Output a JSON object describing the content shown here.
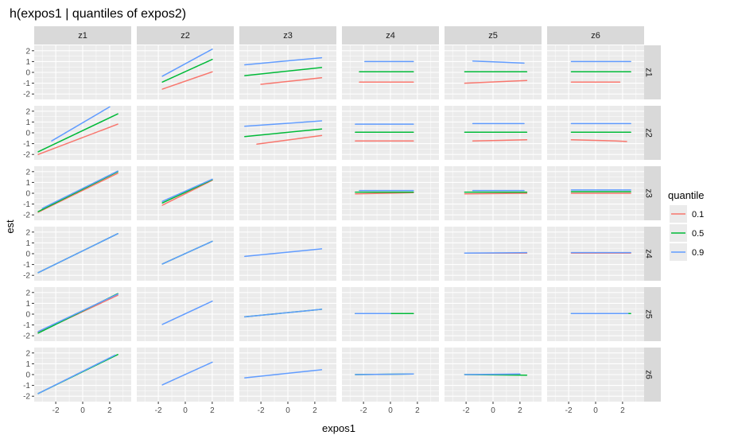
{
  "chart_data": {
    "type": "line",
    "title": "h(expos1 | quantiles of expos2)",
    "xlabel": "expos1",
    "ylabel": "est",
    "col_facets": [
      "z1",
      "z2",
      "z3",
      "z4",
      "z5",
      "z6"
    ],
    "row_facets": [
      "z1",
      "z2",
      "z3",
      "z4",
      "z5",
      "z6"
    ],
    "xlim": [
      -3.6,
      3.6
    ],
    "ylim": [
      -2.5,
      2.5
    ],
    "x_ticks": [
      -2,
      0,
      2
    ],
    "y_ticks": [
      -2,
      -1,
      0,
      1,
      2
    ],
    "legend": {
      "title": "quantile",
      "placement": "right",
      "entries": [
        {
          "label": "0.1",
          "color": "#F8766D"
        },
        {
          "label": "0.5",
          "color": "#00BA38"
        },
        {
          "label": "0.9",
          "color": "#619CFF"
        }
      ]
    },
    "panels": [
      {
        "row": "z1",
        "col": "z1",
        "series": []
      },
      {
        "row": "z1",
        "col": "z2",
        "series": [
          {
            "quantile": "0.1",
            "x": [
              -1.7,
              2.0
            ],
            "y": [
              -1.55,
              0.05
            ]
          },
          {
            "quantile": "0.5",
            "x": [
              -1.7,
              2.0
            ],
            "y": [
              -0.9,
              1.2
            ]
          },
          {
            "quantile": "0.9",
            "x": [
              -1.7,
              2.0
            ],
            "y": [
              -0.35,
              2.15
            ]
          }
        ]
      },
      {
        "row": "z1",
        "col": "z3",
        "series": [
          {
            "quantile": "0.1",
            "x": [
              -2.0,
              2.5
            ],
            "y": [
              -1.1,
              -0.5
            ]
          },
          {
            "quantile": "0.5",
            "x": [
              -3.2,
              2.5
            ],
            "y": [
              -0.3,
              0.45
            ]
          },
          {
            "quantile": "0.9",
            "x": [
              -3.2,
              2.5
            ],
            "y": [
              0.7,
              1.35
            ]
          }
        ]
      },
      {
        "row": "z1",
        "col": "z4",
        "series": [
          {
            "quantile": "0.1",
            "x": [
              -2.3,
              1.7
            ],
            "y": [
              -0.9,
              -0.9
            ]
          },
          {
            "quantile": "0.5",
            "x": [
              -2.3,
              1.7
            ],
            "y": [
              0.05,
              0.05
            ]
          },
          {
            "quantile": "0.9",
            "x": [
              -1.9,
              1.7
            ],
            "y": [
              1.0,
              1.0
            ]
          }
        ]
      },
      {
        "row": "z1",
        "col": "z5",
        "series": [
          {
            "quantile": "0.1",
            "x": [
              -2.1,
              2.5
            ],
            "y": [
              -1.0,
              -0.75
            ]
          },
          {
            "quantile": "0.5",
            "x": [
              -2.1,
              2.5
            ],
            "y": [
              0.05,
              0.05
            ]
          },
          {
            "quantile": "0.9",
            "x": [
              -1.5,
              2.3
            ],
            "y": [
              1.05,
              0.85
            ]
          }
        ]
      },
      {
        "row": "z1",
        "col": "z6",
        "series": [
          {
            "quantile": "0.1",
            "x": [
              -1.8,
              1.8
            ],
            "y": [
              -0.9,
              -0.9
            ]
          },
          {
            "quantile": "0.5",
            "x": [
              -1.8,
              2.6
            ],
            "y": [
              0.05,
              0.05
            ]
          },
          {
            "quantile": "0.9",
            "x": [
              -1.8,
              2.6
            ],
            "y": [
              1.0,
              1.0
            ]
          }
        ]
      },
      {
        "row": "z2",
        "col": "z1",
        "series": [
          {
            "quantile": "0.1",
            "x": [
              -3.3,
              2.6
            ],
            "y": [
              -2.0,
              0.8
            ]
          },
          {
            "quantile": "0.5",
            "x": [
              -3.3,
              2.6
            ],
            "y": [
              -1.75,
              1.75
            ]
          },
          {
            "quantile": "0.9",
            "x": [
              -2.3,
              2.0
            ],
            "y": [
              -0.75,
              2.4
            ]
          }
        ]
      },
      {
        "row": "z2",
        "col": "z2",
        "series": []
      },
      {
        "row": "z2",
        "col": "z3",
        "series": [
          {
            "quantile": "0.1",
            "x": [
              -2.3,
              2.5
            ],
            "y": [
              -1.05,
              -0.25
            ]
          },
          {
            "quantile": "0.5",
            "x": [
              -3.2,
              2.5
            ],
            "y": [
              -0.35,
              0.35
            ]
          },
          {
            "quantile": "0.9",
            "x": [
              -3.2,
              2.5
            ],
            "y": [
              0.6,
              1.1
            ]
          }
        ]
      },
      {
        "row": "z2",
        "col": "z4",
        "series": [
          {
            "quantile": "0.1",
            "x": [
              -2.6,
              1.7
            ],
            "y": [
              -0.75,
              -0.75
            ]
          },
          {
            "quantile": "0.5",
            "x": [
              -2.6,
              1.7
            ],
            "y": [
              0.05,
              0.05
            ]
          },
          {
            "quantile": "0.9",
            "x": [
              -2.6,
              1.7
            ],
            "y": [
              0.8,
              0.8
            ]
          }
        ]
      },
      {
        "row": "z2",
        "col": "z5",
        "series": [
          {
            "quantile": "0.1",
            "x": [
              -1.5,
              2.5
            ],
            "y": [
              -0.75,
              -0.65
            ]
          },
          {
            "quantile": "0.5",
            "x": [
              -2.1,
              2.5
            ],
            "y": [
              0.05,
              0.05
            ]
          },
          {
            "quantile": "0.9",
            "x": [
              -1.5,
              2.3
            ],
            "y": [
              0.85,
              0.85
            ]
          }
        ]
      },
      {
        "row": "z2",
        "col": "z6",
        "series": [
          {
            "quantile": "0.1",
            "x": [
              -1.8,
              1.5,
              2.3
            ],
            "y": [
              -0.65,
              -0.75,
              -0.8
            ]
          },
          {
            "quantile": "0.5",
            "x": [
              -1.8,
              2.6
            ],
            "y": [
              0.05,
              0.05
            ]
          },
          {
            "quantile": "0.9",
            "x": [
              -1.8,
              2.6
            ],
            "y": [
              0.85,
              0.85
            ]
          }
        ]
      },
      {
        "row": "z3",
        "col": "z1",
        "series": [
          {
            "quantile": "0.1",
            "x": [
              -3.3,
              2.6
            ],
            "y": [
              -1.75,
              1.85
            ]
          },
          {
            "quantile": "0.5",
            "x": [
              -3.3,
              2.6
            ],
            "y": [
              -1.7,
              2.0
            ]
          },
          {
            "quantile": "0.9",
            "x": [
              -3.0,
              2.6
            ],
            "y": [
              -1.4,
              2.05
            ]
          }
        ]
      },
      {
        "row": "z3",
        "col": "z2",
        "series": [
          {
            "quantile": "0.1",
            "x": [
              -1.7,
              2.0
            ],
            "y": [
              -1.1,
              1.2
            ]
          },
          {
            "quantile": "0.5",
            "x": [
              -1.7,
              2.0
            ],
            "y": [
              -0.9,
              1.25
            ]
          },
          {
            "quantile": "0.9",
            "x": [
              -1.7,
              2.0
            ],
            "y": [
              -0.75,
              1.3
            ]
          }
        ]
      },
      {
        "row": "z3",
        "col": "z3",
        "series": []
      },
      {
        "row": "z3",
        "col": "z4",
        "series": [
          {
            "quantile": "0.1",
            "x": [
              -2.6,
              1.7
            ],
            "y": [
              -0.05,
              0.05
            ]
          },
          {
            "quantile": "0.5",
            "x": [
              -2.6,
              1.7
            ],
            "y": [
              0.1,
              0.1
            ]
          },
          {
            "quantile": "0.9",
            "x": [
              -2.3,
              1.7
            ],
            "y": [
              0.25,
              0.25
            ]
          }
        ]
      },
      {
        "row": "z3",
        "col": "z5",
        "series": [
          {
            "quantile": "0.1",
            "x": [
              -2.1,
              2.5
            ],
            "y": [
              -0.05,
              0.0
            ]
          },
          {
            "quantile": "0.5",
            "x": [
              -2.1,
              2.5
            ],
            "y": [
              0.1,
              0.1
            ]
          },
          {
            "quantile": "0.9",
            "x": [
              -1.5,
              2.3
            ],
            "y": [
              0.25,
              0.25
            ]
          }
        ]
      },
      {
        "row": "z3",
        "col": "z6",
        "series": [
          {
            "quantile": "0.1",
            "x": [
              -1.8,
              2.6
            ],
            "y": [
              0.0,
              0.0
            ]
          },
          {
            "quantile": "0.5",
            "x": [
              -1.8,
              2.6
            ],
            "y": [
              0.15,
              0.15
            ]
          },
          {
            "quantile": "0.9",
            "x": [
              -1.8,
              2.6
            ],
            "y": [
              0.3,
              0.3
            ]
          }
        ]
      },
      {
        "row": "z4",
        "col": "z1",
        "series": [
          {
            "quantile": "0.5",
            "x": [
              -3.3,
              2.6
            ],
            "y": [
              -1.75,
              1.85
            ]
          },
          {
            "quantile": "0.9",
            "x": [
              -3.3,
              2.6
            ],
            "y": [
              -1.75,
              1.85
            ]
          }
        ]
      },
      {
        "row": "z4",
        "col": "z2",
        "series": [
          {
            "quantile": "0.5",
            "x": [
              -1.7,
              2.0
            ],
            "y": [
              -0.95,
              1.15
            ]
          },
          {
            "quantile": "0.9",
            "x": [
              -1.7,
              2.0
            ],
            "y": [
              -0.95,
              1.15
            ]
          }
        ]
      },
      {
        "row": "z4",
        "col": "z3",
        "series": [
          {
            "quantile": "0.9",
            "x": [
              -3.2,
              2.5
            ],
            "y": [
              -0.25,
              0.45
            ]
          }
        ]
      },
      {
        "row": "z4",
        "col": "z4",
        "series": []
      },
      {
        "row": "z4",
        "col": "z5",
        "series": [
          {
            "quantile": "0.1",
            "x": [
              -2.1,
              2.5
            ],
            "y": [
              0.05,
              0.05
            ]
          },
          {
            "quantile": "0.9",
            "x": [
              -2.1,
              2.5
            ],
            "y": [
              0.05,
              0.1
            ]
          }
        ]
      },
      {
        "row": "z4",
        "col": "z6",
        "series": [
          {
            "quantile": "0.1",
            "x": [
              -1.8,
              2.6
            ],
            "y": [
              0.05,
              0.05
            ]
          },
          {
            "quantile": "0.9",
            "x": [
              -1.8,
              2.6
            ],
            "y": [
              0.1,
              0.1
            ]
          }
        ]
      },
      {
        "row": "z5",
        "col": "z1",
        "series": [
          {
            "quantile": "0.1",
            "x": [
              -3.3,
              2.6
            ],
            "y": [
              -1.7,
              1.75
            ]
          },
          {
            "quantile": "0.5",
            "x": [
              -3.3,
              2.6
            ],
            "y": [
              -1.75,
              1.9
            ]
          },
          {
            "quantile": "0.9",
            "x": [
              -3.3,
              2.6
            ],
            "y": [
              -1.6,
              1.85
            ]
          }
        ]
      },
      {
        "row": "z5",
        "col": "z2",
        "series": [
          {
            "quantile": "0.9",
            "x": [
              -1.7,
              2.0
            ],
            "y": [
              -0.95,
              1.2
            ]
          }
        ]
      },
      {
        "row": "z5",
        "col": "z3",
        "series": [
          {
            "quantile": "0.5",
            "x": [
              -3.2,
              2.5
            ],
            "y": [
              -0.25,
              0.45
            ]
          },
          {
            "quantile": "0.9",
            "x": [
              -3.2,
              2.5
            ],
            "y": [
              -0.25,
              0.45
            ]
          }
        ]
      },
      {
        "row": "z5",
        "col": "z4",
        "series": [
          {
            "quantile": "0.1",
            "x": [
              -2.6,
              1.7
            ],
            "y": [
              0.05,
              0.05
            ]
          },
          {
            "quantile": "0.5",
            "x": [
              -2.6,
              1.7
            ],
            "y": [
              0.05,
              0.05
            ]
          },
          {
            "quantile": "0.9",
            "x": [
              -2.6,
              0.0
            ],
            "y": [
              0.05,
              0.05
            ]
          }
        ]
      },
      {
        "row": "z5",
        "col": "z5",
        "series": []
      },
      {
        "row": "z5",
        "col": "z6",
        "series": [
          {
            "quantile": "0.5",
            "x": [
              -1.8,
              2.6
            ],
            "y": [
              0.05,
              0.05
            ]
          },
          {
            "quantile": "0.9",
            "x": [
              -1.8,
              2.4
            ],
            "y": [
              0.05,
              0.05
            ]
          }
        ]
      },
      {
        "row": "z6",
        "col": "z1",
        "series": [
          {
            "quantile": "0.5",
            "x": [
              -3.3,
              2.6
            ],
            "y": [
              -1.75,
              1.85
            ]
          },
          {
            "quantile": "0.9",
            "x": [
              -3.3,
              2.4
            ],
            "y": [
              -1.75,
              1.8
            ]
          }
        ]
      },
      {
        "row": "z6",
        "col": "z2",
        "series": [
          {
            "quantile": "0.9",
            "x": [
              -1.7,
              2.0
            ],
            "y": [
              -0.95,
              1.15
            ]
          }
        ]
      },
      {
        "row": "z6",
        "col": "z3",
        "series": [
          {
            "quantile": "0.9",
            "x": [
              -3.2,
              2.5
            ],
            "y": [
              -0.3,
              0.45
            ]
          }
        ]
      },
      {
        "row": "z6",
        "col": "z4",
        "series": [
          {
            "quantile": "0.5",
            "x": [
              -2.6,
              1.7
            ],
            "y": [
              0.0,
              0.05
            ]
          },
          {
            "quantile": "0.9",
            "x": [
              -2.6,
              1.7
            ],
            "y": [
              0.0,
              0.05
            ]
          }
        ]
      },
      {
        "row": "z6",
        "col": "z5",
        "series": [
          {
            "quantile": "0.5",
            "x": [
              -2.1,
              2.5
            ],
            "y": [
              0.0,
              -0.05
            ]
          },
          {
            "quantile": "0.9",
            "x": [
              -2.1,
              2.0
            ],
            "y": [
              0.0,
              0.05
            ]
          }
        ]
      },
      {
        "row": "z6",
        "col": "z6",
        "series": []
      }
    ]
  }
}
